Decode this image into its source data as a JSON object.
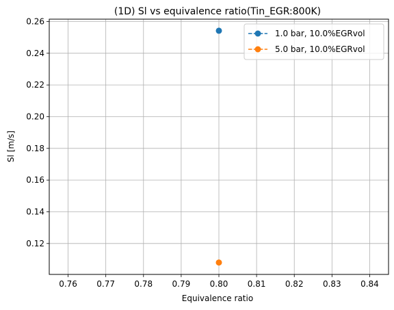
{
  "chart_data": {
    "type": "scatter",
    "title": "(1D) Sl vs equivalence ratio(Tin_EGR:800K)",
    "xlabel": "Equivalence ratio",
    "ylabel": "Sl [m/s]",
    "xlim": [
      0.755,
      0.845
    ],
    "ylim": [
      0.1005,
      0.2615
    ],
    "xticks": [
      0.76,
      0.77,
      0.78,
      0.79,
      0.8,
      0.81,
      0.82,
      0.83,
      0.84
    ],
    "xtick_labels": [
      "0.76",
      "0.77",
      "0.78",
      "0.79",
      "0.80",
      "0.81",
      "0.82",
      "0.83",
      "0.84"
    ],
    "yticks": [
      0.12,
      0.14,
      0.16,
      0.18,
      0.2,
      0.22,
      0.24,
      0.26
    ],
    "ytick_labels": [
      "0.12",
      "0.14",
      "0.16",
      "0.18",
      "0.20",
      "0.22",
      "0.24",
      "0.26"
    ],
    "grid": true,
    "legend_position": "top-right",
    "series": [
      {
        "name": "1.0 bar, 10.0%EGRvol",
        "color": "#1f77b4",
        "x": [
          0.8
        ],
        "y": [
          0.2542
        ]
      },
      {
        "name": "5.0 bar, 10.0%EGRvol",
        "color": "#ff7f0e",
        "x": [
          0.8
        ],
        "y": [
          0.108
        ]
      }
    ]
  }
}
